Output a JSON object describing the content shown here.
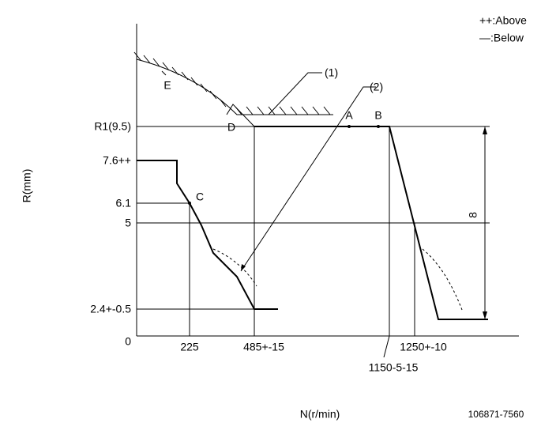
{
  "legend": {
    "above": "++:Above",
    "below": "—:Below"
  },
  "points": {
    "a": "A",
    "b": "B",
    "c": "C",
    "d": "D",
    "e": "E"
  },
  "callouts": [
    "(1)",
    "(2)"
  ],
  "y_axis": {
    "title": "R(mm)",
    "ticks": [
      "R1(9.5)",
      "7.6++",
      "6.1",
      "5",
      "2.4+-0.5",
      "0"
    ]
  },
  "x_axis": {
    "title": "N(r/min)",
    "ticks": [
      "225",
      "485+-15",
      "1250+-10",
      "1150-5-15"
    ]
  },
  "dimension": "8",
  "drawing_number": "106871-7560"
}
